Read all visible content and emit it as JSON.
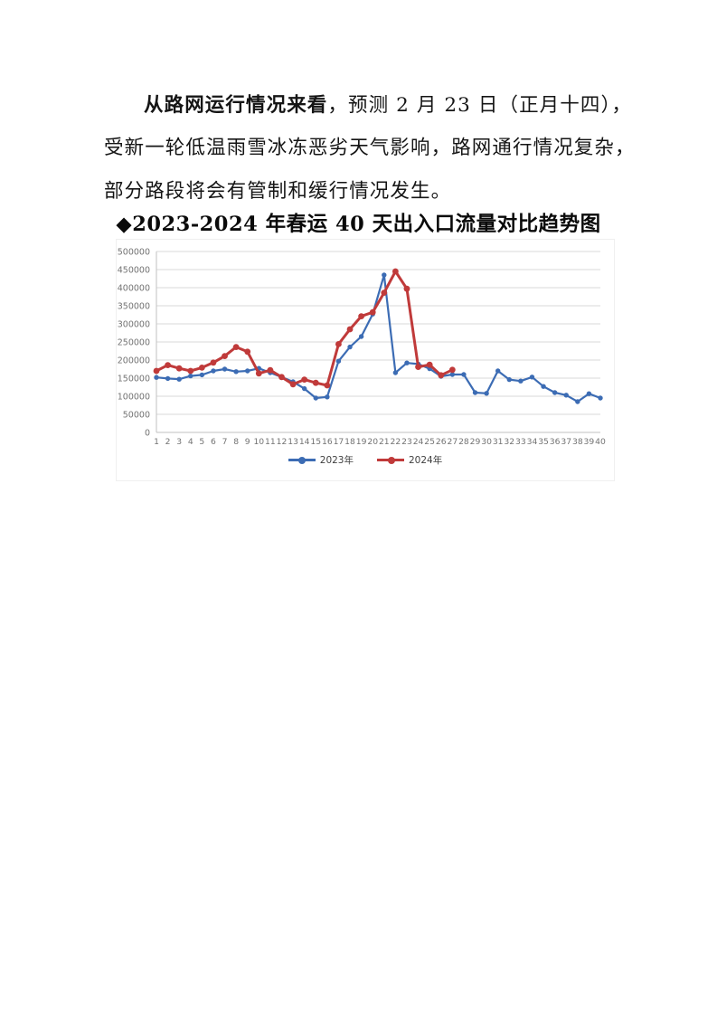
{
  "document": {
    "paragraph": {
      "line1_bold": "从路网运行情况来看",
      "line1_rest": "，预测 2 月 23 日（正月十四），",
      "line2": "受新一轮低温雨雪冰冻恶劣天气影响，路网通行情况复杂，",
      "line3": "部分路段将会有管制和缓行情况发生。"
    },
    "chart_heading": "◆2023-2024 年春运 40 天出入口流量对比趋势图"
  },
  "chart_data": {
    "type": "line",
    "title": "2023-2024 年春运 40 天出入口流量对比趋势图",
    "xlabel": "",
    "ylabel": "",
    "x": [
      1,
      2,
      3,
      4,
      5,
      6,
      7,
      8,
      9,
      10,
      11,
      12,
      13,
      14,
      15,
      16,
      17,
      18,
      19,
      20,
      21,
      22,
      23,
      24,
      25,
      26,
      27,
      28,
      29,
      30,
      31,
      32,
      33,
      34,
      35,
      36,
      37,
      38,
      39,
      40
    ],
    "series": [
      {
        "name": "2023年",
        "color": "#3c6cb4",
        "values": [
          152000,
          149000,
          147000,
          156000,
          159000,
          170000,
          175000,
          168000,
          170000,
          177000,
          165000,
          153000,
          140000,
          121000,
          95000,
          98000,
          197000,
          236000,
          265000,
          327000,
          435000,
          165000,
          192000,
          189000,
          176000,
          155000,
          160000,
          160000,
          110000,
          108000,
          170000,
          146000,
          142000,
          153000,
          127000,
          110000,
          103000,
          85000,
          107000,
          95000
        ]
      },
      {
        "name": "2024年",
        "color": "#c03a3a",
        "values": [
          170000,
          186000,
          177000,
          170000,
          179000,
          193000,
          211000,
          236000,
          223000,
          163000,
          172000,
          153000,
          133000,
          146000,
          137000,
          130000,
          244000,
          285000,
          321000,
          332000,
          386000,
          445000,
          397000,
          181000,
          187000,
          158000,
          173000
        ]
      }
    ],
    "ylim": [
      0,
      500000
    ],
    "ytick_step": 50000,
    "grid": true,
    "legend_position": "bottom",
    "gridline_color": "#d9d9d9",
    "axis_line_color": "#c2c2c2",
    "axis_label_color": "#737373"
  }
}
